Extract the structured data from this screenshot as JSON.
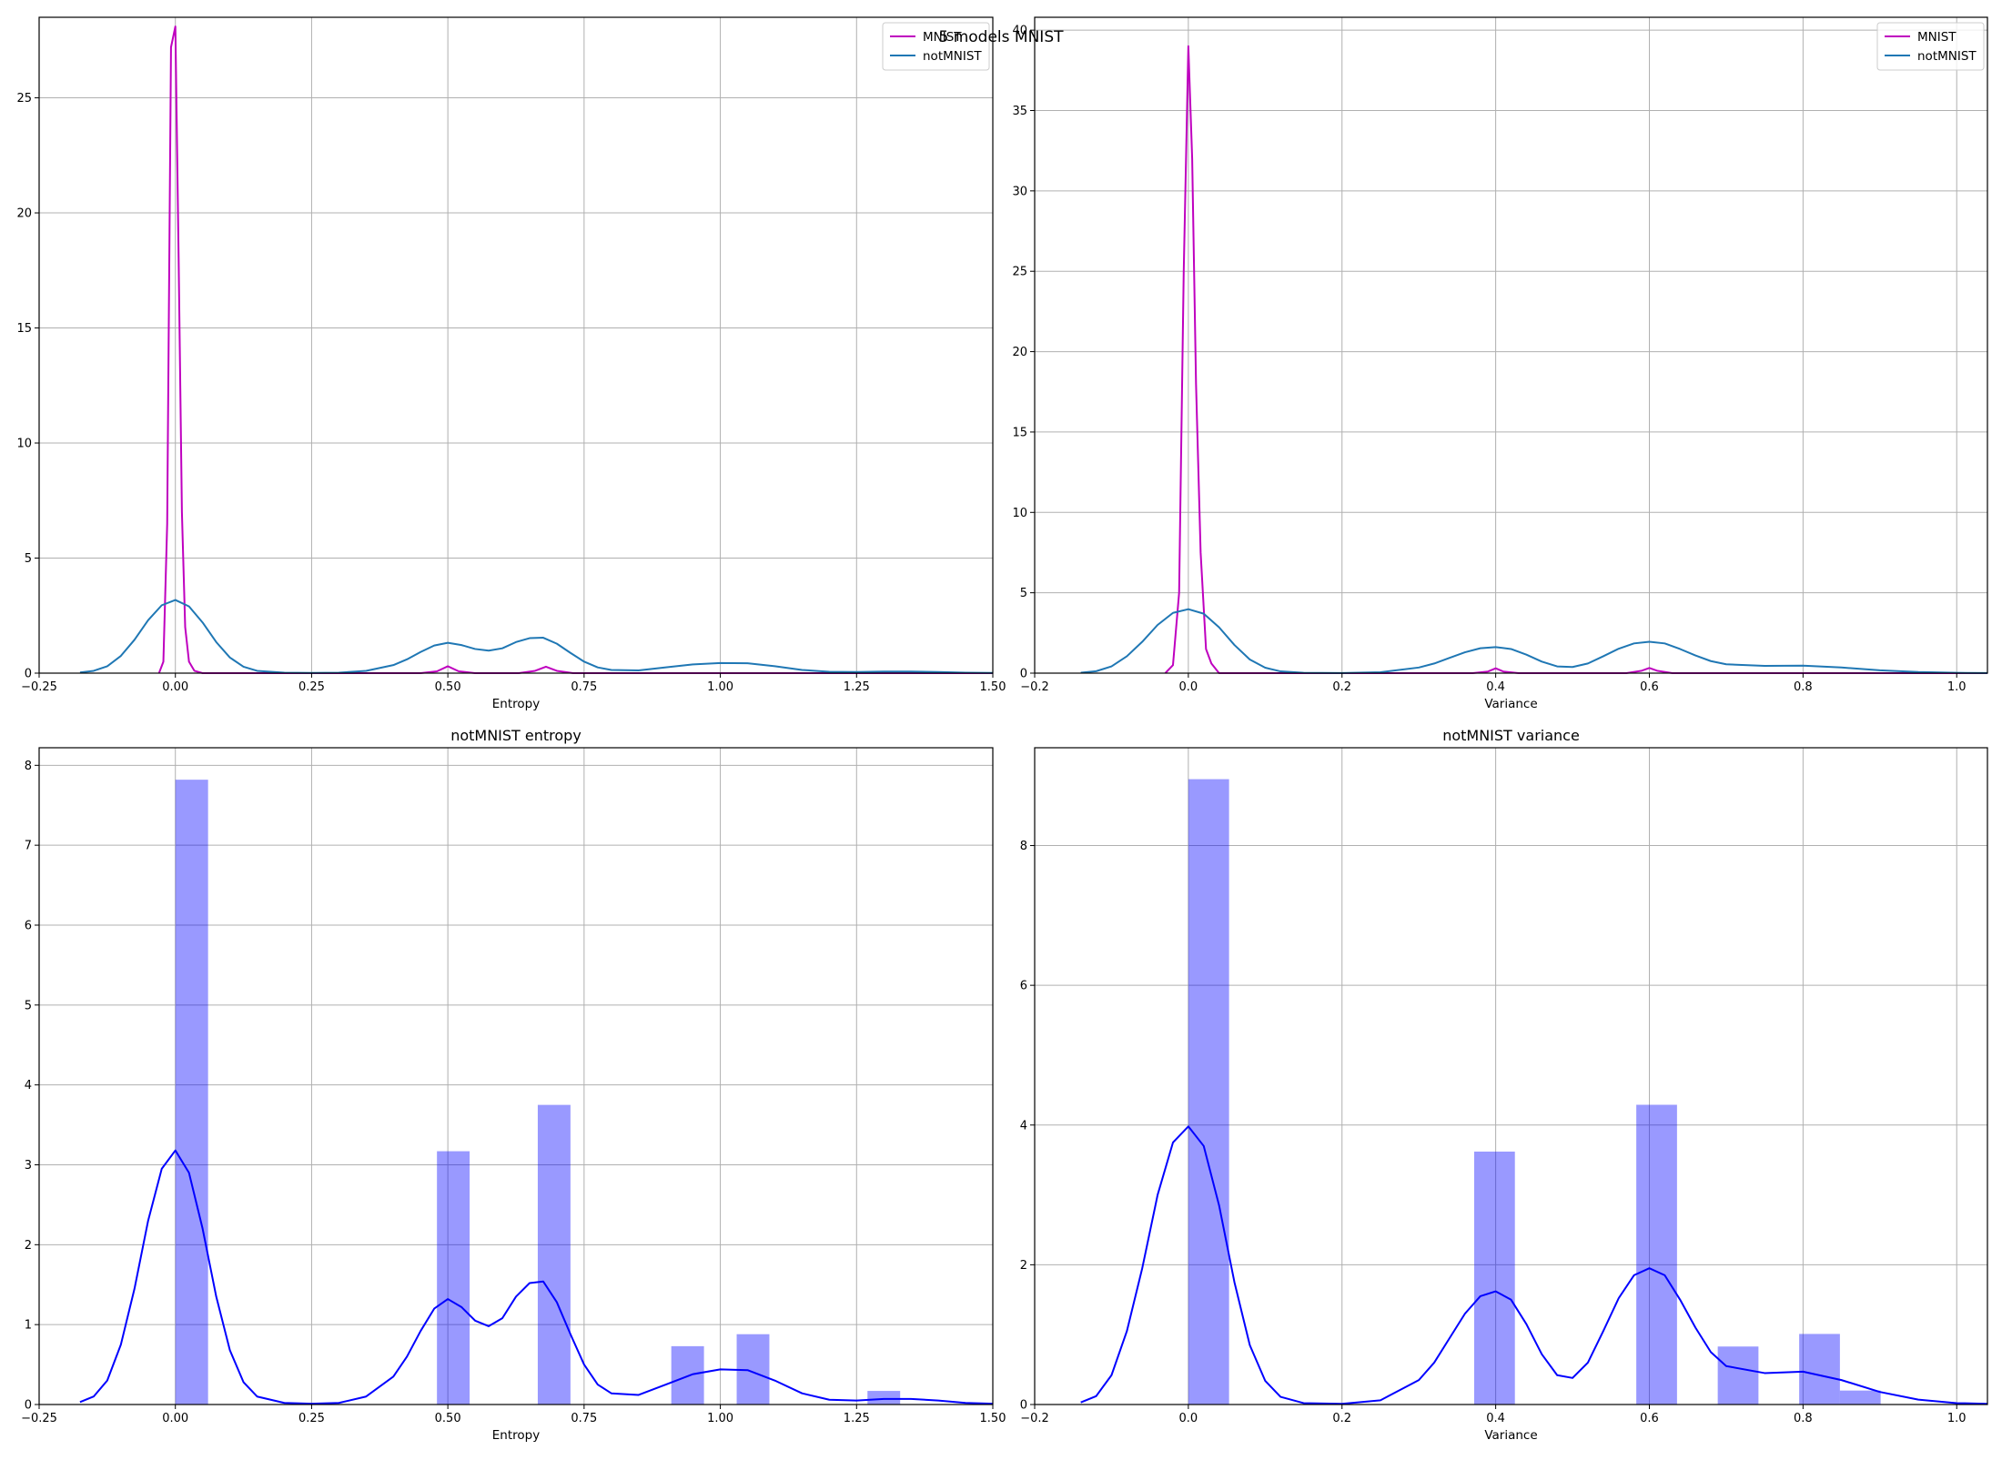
{
  "figure": {
    "suptitle": "5 models MNIST"
  },
  "chart_data": [
    {
      "type": "line",
      "title": "",
      "xlabel": "Entropy",
      "ylabel": "",
      "xlim": [
        -0.25,
        1.5
      ],
      "ylim": [
        0,
        28.5
      ],
      "xticks": [
        -0.25,
        0,
        0.25,
        0.5,
        0.75,
        1.0,
        1.25,
        1.5
      ],
      "xtick_labels": [
        "−0.25",
        "0.00",
        "0.25",
        "0.50",
        "0.75",
        "1.00",
        "1.25",
        "1.50"
      ],
      "yticks": [
        0,
        5,
        10,
        15,
        20,
        25
      ],
      "ytick_labels": [
        "0",
        "5",
        "10",
        "15",
        "20",
        "25"
      ],
      "grid": true,
      "legend": "top-right",
      "series": [
        {
          "name": "MNIST",
          "color": "#bf00bf",
          "x": [
            -0.03,
            -0.022,
            -0.015,
            -0.008,
            0.0,
            0.006,
            0.012,
            0.018,
            0.025,
            0.035,
            0.05,
            0.45,
            0.48,
            0.5,
            0.52,
            0.55,
            0.63,
            0.66,
            0.68,
            0.7,
            0.73,
            1.5
          ],
          "y": [
            0,
            0.5,
            6.5,
            27.2,
            28.1,
            18.0,
            7.0,
            2.0,
            0.5,
            0.1,
            0,
            0,
            0.08,
            0.3,
            0.08,
            0,
            0,
            0.1,
            0.28,
            0.1,
            0,
            0
          ]
        },
        {
          "name": "notMNIST",
          "color": "#1f77b4",
          "x": [
            -0.175,
            -0.15,
            -0.125,
            -0.1,
            -0.075,
            -0.05,
            -0.025,
            0.0,
            0.025,
            0.05,
            0.075,
            0.1,
            0.125,
            0.15,
            0.2,
            0.25,
            0.3,
            0.35,
            0.4,
            0.425,
            0.45,
            0.475,
            0.5,
            0.525,
            0.55,
            0.575,
            0.6,
            0.625,
            0.65,
            0.675,
            0.7,
            0.725,
            0.75,
            0.775,
            0.8,
            0.85,
            0.9,
            0.95,
            1.0,
            1.05,
            1.1,
            1.15,
            1.2,
            1.25,
            1.3,
            1.35,
            1.4,
            1.45,
            1.5
          ],
          "y": [
            0.03,
            0.1,
            0.3,
            0.75,
            1.45,
            2.3,
            2.95,
            3.18,
            2.9,
            2.2,
            1.35,
            0.68,
            0.28,
            0.1,
            0.02,
            0.01,
            0.02,
            0.1,
            0.35,
            0.6,
            0.92,
            1.2,
            1.32,
            1.22,
            1.05,
            0.98,
            1.08,
            1.35,
            1.52,
            1.54,
            1.28,
            0.88,
            0.5,
            0.25,
            0.14,
            0.12,
            0.25,
            0.38,
            0.44,
            0.43,
            0.3,
            0.14,
            0.06,
            0.05,
            0.07,
            0.07,
            0.05,
            0.02,
            0.01
          ]
        }
      ]
    },
    {
      "type": "line",
      "title": "",
      "xlabel": "Variance",
      "ylabel": "",
      "xlim": [
        -0.2,
        1.04
      ],
      "ylim": [
        0,
        40.8
      ],
      "xticks": [
        -0.2,
        0,
        0.2,
        0.4,
        0.6,
        0.8,
        1.0
      ],
      "xtick_labels": [
        "−0.2",
        "0.0",
        "0.2",
        "0.4",
        "0.6",
        "0.8",
        "1.0"
      ],
      "yticks": [
        0,
        5,
        10,
        15,
        20,
        25,
        30,
        35,
        40
      ],
      "ytick_labels": [
        "0",
        "5",
        "10",
        "15",
        "20",
        "25",
        "30",
        "35",
        "40"
      ],
      "grid": true,
      "legend": "top-right",
      "series": [
        {
          "name": "MNIST",
          "color": "#bf00bf",
          "x": [
            -0.03,
            -0.02,
            -0.012,
            -0.006,
            0.0,
            0.005,
            0.01,
            0.016,
            0.023,
            0.03,
            0.04,
            0.37,
            0.39,
            0.4,
            0.41,
            0.43,
            0.57,
            0.59,
            0.6,
            0.61,
            0.63,
            1.04
          ],
          "y": [
            0,
            0.5,
            5.0,
            25.0,
            39.0,
            32.0,
            18.0,
            7.5,
            1.5,
            0.6,
            0,
            0,
            0.1,
            0.3,
            0.1,
            0,
            0,
            0.15,
            0.32,
            0.15,
            0,
            0
          ]
        },
        {
          "name": "notMNIST",
          "color": "#1f77b4",
          "x": [
            -0.14,
            -0.12,
            -0.1,
            -0.08,
            -0.06,
            -0.04,
            -0.02,
            0.0,
            0.02,
            0.04,
            0.06,
            0.08,
            0.1,
            0.12,
            0.15,
            0.2,
            0.25,
            0.3,
            0.32,
            0.34,
            0.36,
            0.38,
            0.4,
            0.42,
            0.44,
            0.46,
            0.48,
            0.5,
            0.52,
            0.54,
            0.56,
            0.58,
            0.6,
            0.62,
            0.64,
            0.66,
            0.68,
            0.7,
            0.75,
            0.8,
            0.85,
            0.9,
            0.95,
            1.0,
            1.04
          ],
          "y": [
            0.03,
            0.12,
            0.42,
            1.05,
            1.95,
            3.0,
            3.75,
            3.98,
            3.7,
            2.85,
            1.75,
            0.85,
            0.34,
            0.11,
            0.02,
            0.01,
            0.06,
            0.35,
            0.6,
            0.95,
            1.3,
            1.55,
            1.62,
            1.5,
            1.15,
            0.72,
            0.42,
            0.38,
            0.6,
            1.05,
            1.52,
            1.85,
            1.95,
            1.85,
            1.5,
            1.1,
            0.75,
            0.55,
            0.45,
            0.47,
            0.35,
            0.18,
            0.07,
            0.02,
            0.01
          ]
        }
      ]
    },
    {
      "type": "bar",
      "title": "notMNIST entropy",
      "xlabel": "Entropy",
      "ylabel": "",
      "xlim": [
        -0.25,
        1.5
      ],
      "ylim": [
        0,
        8.22
      ],
      "xticks": [
        -0.25,
        0,
        0.25,
        0.5,
        0.75,
        1.0,
        1.25,
        1.5
      ],
      "xtick_labels": [
        "−0.25",
        "0.00",
        "0.25",
        "0.50",
        "0.75",
        "1.00",
        "1.25",
        "1.50"
      ],
      "yticks": [
        0,
        1,
        2,
        3,
        4,
        5,
        6,
        7,
        8
      ],
      "ytick_labels": [
        "0",
        "1",
        "2",
        "3",
        "4",
        "5",
        "6",
        "7",
        "8"
      ],
      "grid": true,
      "legend": "none",
      "bar_color": "#0000ff",
      "bar_opacity": 0.4,
      "bars": [
        {
          "x0": 0.0,
          "x1": 0.06,
          "value": 7.82
        },
        {
          "x0": 0.48,
          "x1": 0.54,
          "value": 3.17
        },
        {
          "x0": 0.665,
          "x1": 0.725,
          "value": 3.75
        },
        {
          "x0": 0.91,
          "x1": 0.97,
          "value": 0.73
        },
        {
          "x0": 1.03,
          "x1": 1.09,
          "value": 0.88
        },
        {
          "x0": 1.27,
          "x1": 1.33,
          "value": 0.17
        }
      ],
      "series": [
        {
          "name": "",
          "color": "#0000ff",
          "x": [
            -0.175,
            -0.15,
            -0.125,
            -0.1,
            -0.075,
            -0.05,
            -0.025,
            0.0,
            0.025,
            0.05,
            0.075,
            0.1,
            0.125,
            0.15,
            0.2,
            0.25,
            0.3,
            0.35,
            0.4,
            0.425,
            0.45,
            0.475,
            0.5,
            0.525,
            0.55,
            0.575,
            0.6,
            0.625,
            0.65,
            0.675,
            0.7,
            0.725,
            0.75,
            0.775,
            0.8,
            0.85,
            0.9,
            0.95,
            1.0,
            1.05,
            1.1,
            1.15,
            1.2,
            1.25,
            1.3,
            1.35,
            1.4,
            1.45,
            1.5
          ],
          "y": [
            0.03,
            0.1,
            0.3,
            0.75,
            1.45,
            2.3,
            2.95,
            3.18,
            2.9,
            2.2,
            1.35,
            0.68,
            0.28,
            0.1,
            0.02,
            0.01,
            0.02,
            0.1,
            0.35,
            0.6,
            0.92,
            1.2,
            1.32,
            1.22,
            1.05,
            0.98,
            1.08,
            1.35,
            1.52,
            1.54,
            1.28,
            0.88,
            0.5,
            0.25,
            0.14,
            0.12,
            0.25,
            0.38,
            0.44,
            0.43,
            0.3,
            0.14,
            0.06,
            0.05,
            0.07,
            0.07,
            0.05,
            0.02,
            0.01
          ]
        }
      ]
    },
    {
      "type": "bar",
      "title": "notMNIST variance",
      "xlabel": "Variance",
      "ylabel": "",
      "xlim": [
        -0.2,
        1.04
      ],
      "ylim": [
        0,
        9.4
      ],
      "xticks": [
        -0.2,
        0,
        0.2,
        0.4,
        0.6,
        0.8,
        1.0
      ],
      "xtick_labels": [
        "−0.2",
        "0.0",
        "0.2",
        "0.4",
        "0.6",
        "0.8",
        "1.0"
      ],
      "yticks": [
        0,
        2,
        4,
        6,
        8
      ],
      "ytick_labels": [
        "0",
        "2",
        "4",
        "6",
        "8"
      ],
      "grid": true,
      "legend": "none",
      "bar_color": "#0000ff",
      "bar_opacity": 0.4,
      "bars": [
        {
          "x0": 0.0,
          "x1": 0.053,
          "value": 8.95
        },
        {
          "x0": 0.372,
          "x1": 0.425,
          "value": 3.62
        },
        {
          "x0": 0.583,
          "x1": 0.636,
          "value": 4.29
        },
        {
          "x0": 0.689,
          "x1": 0.742,
          "value": 0.83
        },
        {
          "x0": 0.795,
          "x1": 0.848,
          "value": 1.01
        },
        {
          "x0": 0.848,
          "x1": 0.901,
          "value": 0.2
        }
      ],
      "series": [
        {
          "name": "",
          "color": "#0000ff",
          "x": [
            -0.14,
            -0.12,
            -0.1,
            -0.08,
            -0.06,
            -0.04,
            -0.02,
            0.0,
            0.02,
            0.04,
            0.06,
            0.08,
            0.1,
            0.12,
            0.15,
            0.2,
            0.25,
            0.3,
            0.32,
            0.34,
            0.36,
            0.38,
            0.4,
            0.42,
            0.44,
            0.46,
            0.48,
            0.5,
            0.52,
            0.54,
            0.56,
            0.58,
            0.6,
            0.62,
            0.64,
            0.66,
            0.68,
            0.7,
            0.75,
            0.8,
            0.85,
            0.9,
            0.95,
            1.0,
            1.04
          ],
          "y": [
            0.03,
            0.12,
            0.42,
            1.05,
            1.95,
            3.0,
            3.75,
            3.98,
            3.7,
            2.85,
            1.75,
            0.85,
            0.34,
            0.11,
            0.02,
            0.01,
            0.06,
            0.35,
            0.6,
            0.95,
            1.3,
            1.55,
            1.62,
            1.5,
            1.15,
            0.72,
            0.42,
            0.38,
            0.6,
            1.05,
            1.52,
            1.85,
            1.95,
            1.85,
            1.5,
            1.1,
            0.75,
            0.55,
            0.45,
            0.47,
            0.35,
            0.18,
            0.07,
            0.02,
            0.01
          ]
        }
      ]
    }
  ]
}
